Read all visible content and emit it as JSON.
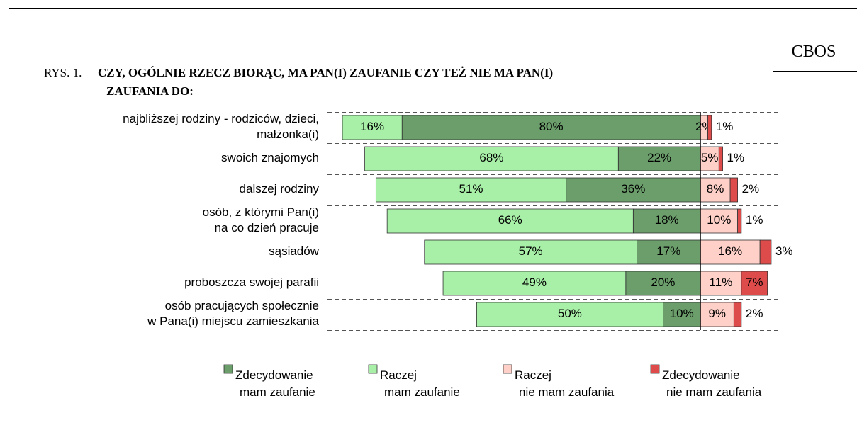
{
  "badge": "CBOS",
  "chart_data": {
    "type": "diverging-bar",
    "title_prefix": "RYS. 1.",
    "title": "CZY, OGÓLNIE RZECZ BIORĄC, MA PAN(I) ZAUFANIE CZY TEŻ NIE MA PAN(I)\nZAUFANIA DO:",
    "categories": [
      "najbliższej rodziny - rodziców, dzieci,\nmałżonka(i)",
      "swoich znajomych",
      "dalszej rodziny",
      "osób, z którymi Pan(i)\nna co dzień pracuje",
      "sąsiadów",
      "proboszcza swojej parafii",
      "osób pracujących społecznie\nw Pana(i) miejscu zamieszkania"
    ],
    "series": [
      {
        "name": "Zdecydowanie\nmam zaufanie",
        "color": "#6b9e6b",
        "side": "left",
        "values": [
          80,
          22,
          36,
          18,
          17,
          20,
          10
        ],
        "value_labels": [
          "80%",
          "22%",
          "36%",
          "18%",
          "17%",
          "20%",
          "10%"
        ]
      },
      {
        "name": "Raczej\nmam zaufanie",
        "color": "#a8f0a8",
        "side": "left",
        "values": [
          16,
          68,
          51,
          66,
          57,
          49,
          50
        ],
        "value_labels": [
          "16%",
          "68%",
          "51%",
          "66%",
          "57%",
          "49%",
          "50%"
        ]
      },
      {
        "name": "Raczej\nnie mam zaufania",
        "color": "#ffd0c8",
        "side": "right",
        "values": [
          2,
          5,
          8,
          10,
          16,
          11,
          9
        ],
        "value_labels": [
          "2%",
          "5%",
          "8%",
          "10%",
          "16%",
          "11%",
          "9%"
        ]
      },
      {
        "name": "Zdecydowanie\nnie mam zaufania",
        "color": "#dd4b4b",
        "side": "right",
        "values": [
          1,
          1,
          2,
          1,
          3,
          7,
          2
        ],
        "value_labels": [
          "1%",
          "1%",
          "2%",
          "1%",
          "3%",
          "7%",
          "2%"
        ]
      }
    ]
  }
}
